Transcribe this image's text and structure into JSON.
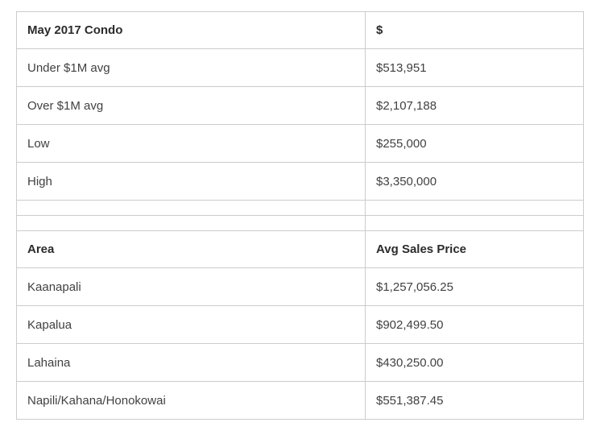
{
  "page": {
    "background_color": "#ffffff",
    "border_color": "#cccccc",
    "header_text_color": "#2b2b2b",
    "body_text_color": "#414141"
  },
  "condo_table": {
    "header": {
      "label": "May 2017 Condo",
      "value": "$"
    },
    "rows": [
      {
        "label": "Under $1M avg",
        "value": "$513,951"
      },
      {
        "label": "Over $1M avg",
        "value": "$2,107,188"
      },
      {
        "label": "Low",
        "value": "$255,000"
      },
      {
        "label": "High",
        "value": "$3,350,000"
      }
    ]
  },
  "spacer": {
    "count": 2
  },
  "area_table": {
    "header": {
      "label": "Area",
      "value": "Avg Sales Price"
    },
    "rows": [
      {
        "label": "Kaanapali",
        "value": "$1,257,056.25"
      },
      {
        "label": "Kapalua",
        "value": "$902,499.50"
      },
      {
        "label": "Lahaina",
        "value": "$430,250.00"
      },
      {
        "label": "Napili/Kahana/Honokowai",
        "value": "$551,387.45"
      }
    ]
  }
}
